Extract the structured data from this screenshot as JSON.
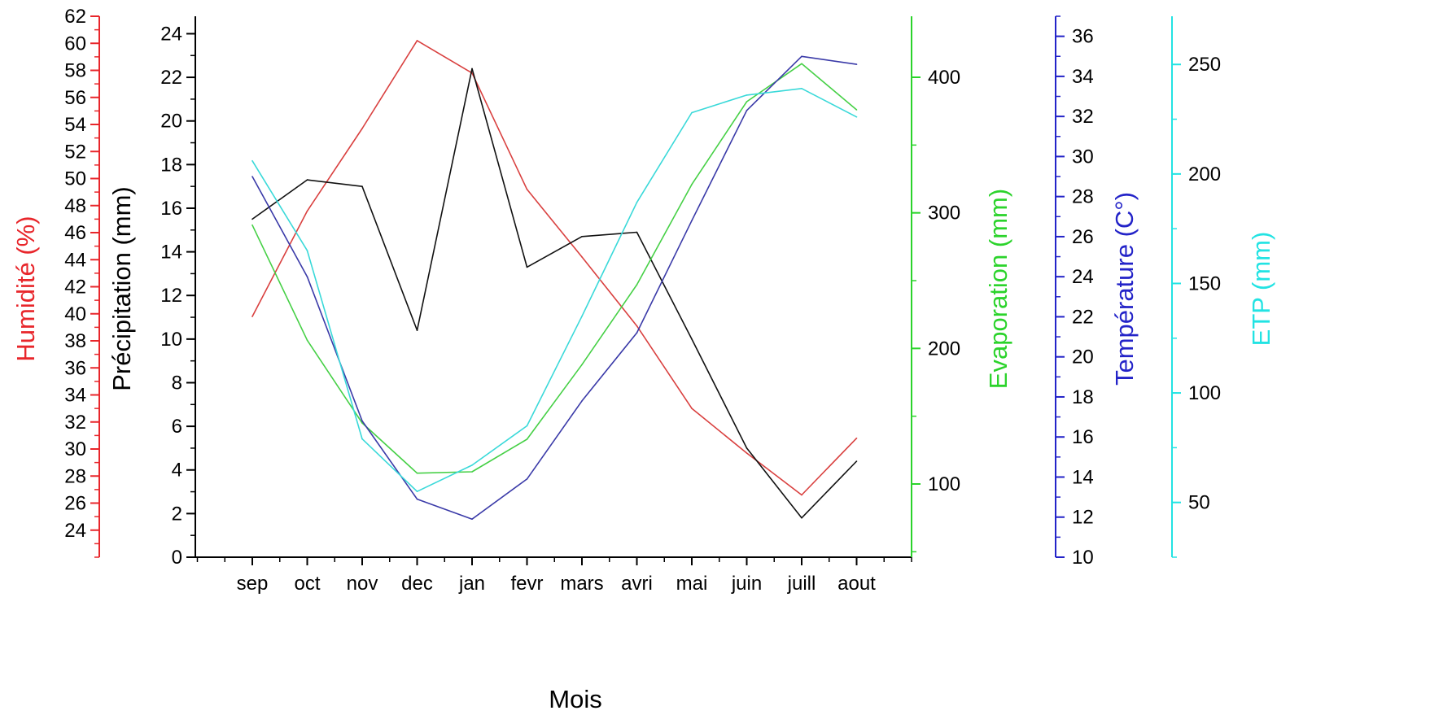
{
  "chart_data": {
    "type": "line",
    "xlabel": "Mois",
    "categories": [
      "sep",
      "oct",
      "nov",
      "dec",
      "jan",
      "fevr",
      "mars",
      "avri",
      "mai",
      "juin",
      "juill",
      "aout"
    ],
    "grid": false,
    "axes": [
      {
        "id": "humidite",
        "label": "Humidité (%)",
        "color": "#e8262b",
        "ylim": [
          22,
          62
        ],
        "ticks": [
          24,
          26,
          28,
          30,
          32,
          34,
          36,
          38,
          40,
          42,
          44,
          46,
          48,
          50,
          52,
          54,
          56,
          58,
          60,
          62
        ]
      },
      {
        "id": "precipitation",
        "label": "Précipitation (mm)",
        "color": "#000000",
        "ylim": [
          0,
          24.8
        ],
        "ticks": [
          0,
          2,
          4,
          6,
          8,
          10,
          12,
          14,
          16,
          18,
          20,
          22,
          24
        ]
      },
      {
        "id": "evaporation",
        "label": "Evaporation (mm)",
        "color": "#2bd32b",
        "ylim": [
          46,
          445
        ],
        "ticks": [
          100,
          200,
          300,
          400
        ]
      },
      {
        "id": "temperature",
        "label": "Température (C°)",
        "color": "#2323c8",
        "ylim": [
          10,
          37
        ],
        "ticks": [
          10,
          12,
          14,
          16,
          18,
          20,
          22,
          24,
          26,
          28,
          30,
          32,
          34,
          36
        ]
      },
      {
        "id": "etp",
        "label": "ETP (mm)",
        "color": "#22e3e3",
        "ylim": [
          25,
          272
        ],
        "ticks": [
          50,
          100,
          150,
          200,
          250
        ]
      }
    ],
    "series": [
      {
        "axis": "humidite",
        "color": "#d9403f",
        "values": [
          39.8,
          47.6,
          53.7,
          60.2,
          57.8,
          49.2,
          44.2,
          39.1,
          33.0,
          29.7,
          26.6,
          30.8
        ]
      },
      {
        "axis": "precipitation",
        "color": "#111111",
        "values": [
          15.5,
          17.3,
          17.0,
          10.4,
          22.4,
          13.3,
          14.7,
          14.9,
          10.0,
          5.0,
          1.8,
          4.4
        ]
      },
      {
        "axis": "evaporation",
        "color": "#46d046",
        "values": [
          291,
          206,
          145,
          108,
          109,
          133,
          188,
          247,
          321,
          382,
          410,
          376
        ]
      },
      {
        "axis": "temperature",
        "color": "#3a3aa8",
        "values": [
          29.0,
          24.0,
          16.8,
          12.9,
          11.9,
          13.9,
          17.8,
          21.2,
          26.8,
          32.3,
          35.0,
          34.6
        ]
      },
      {
        "axis": "etp",
        "color": "#3ad9d9",
        "values": [
          206,
          165,
          79,
          55,
          67,
          85,
          135,
          187,
          228,
          236,
          239,
          226
        ]
      }
    ]
  }
}
